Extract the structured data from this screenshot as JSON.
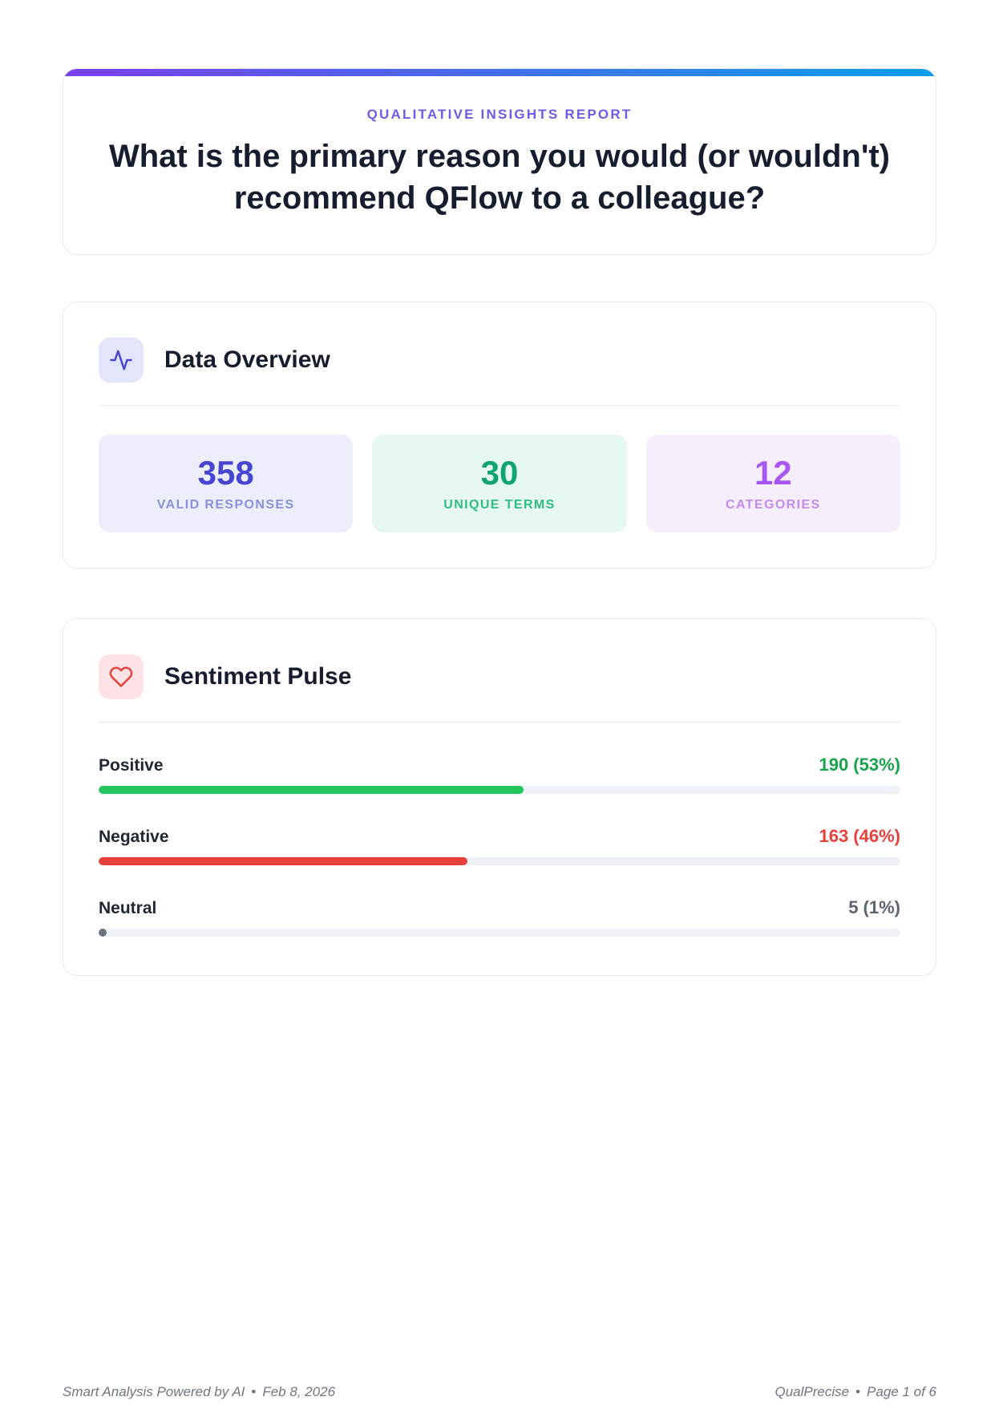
{
  "report": {
    "eyebrow": "QUALITATIVE INSIGHTS REPORT",
    "title": "What is the primary reason you would (or wouldn't) recommend QFlow to a colleague?"
  },
  "overview": {
    "title": "Data Overview",
    "stats": [
      {
        "value": "358",
        "label": "VALID RESPONSES",
        "color_theme": "indigo"
      },
      {
        "value": "30",
        "label": "UNIQUE TERMS",
        "color_theme": "green"
      },
      {
        "value": "12",
        "label": "CATEGORIES",
        "color_theme": "purple"
      }
    ]
  },
  "sentiment": {
    "title": "Sentiment Pulse",
    "rows": [
      {
        "label": "Positive",
        "value": "190 (53%)",
        "count": 190,
        "pct": 53,
        "bar_color": "#22C55E",
        "value_color": "#17A34A"
      },
      {
        "label": "Negative",
        "value": "163 (46%)",
        "count": 163,
        "pct": 46,
        "bar_color": "#E8413C",
        "value_color": "#E8413C"
      },
      {
        "label": "Neutral",
        "value": "5 (1%)",
        "count": 5,
        "pct": 1,
        "bar_color": "#6B7280",
        "value_color": "#5B6470"
      }
    ]
  },
  "chart_data": {
    "type": "bar",
    "title": "Sentiment Pulse",
    "categories": [
      "Positive",
      "Negative",
      "Neutral"
    ],
    "values": [
      190,
      163,
      5
    ],
    "percentages": [
      53,
      46,
      1
    ],
    "orientation": "horizontal",
    "xlim": [
      0,
      100
    ]
  },
  "footer": {
    "brand": "Smart Analysis Powered by AI",
    "date": "Feb 8, 2026",
    "product": "QualPrecise",
    "page": "Page 1 of 6",
    "separator": "•"
  },
  "colors": {
    "accent": "#6C5CE7",
    "gradient_start": "#7A3FF2",
    "gradient_end": "#0B9FE6",
    "indigo": "#4845D2",
    "indigo_soft": "#8A90DC",
    "indigo_bg": "#ECEFFB",
    "green": "#10A56F",
    "green_soft": "#2EBD83",
    "green_bg": "#E6F8EF",
    "purple": "#A855F7",
    "purple_soft": "#C18BEF",
    "purple_bg": "#F6EEFD",
    "positive": "#17A34A",
    "positive_bar": "#22C55E",
    "negative": "#E8413C",
    "neutral": "#5B6470",
    "track": "#EDF0F4",
    "heading": "#161D2E"
  }
}
